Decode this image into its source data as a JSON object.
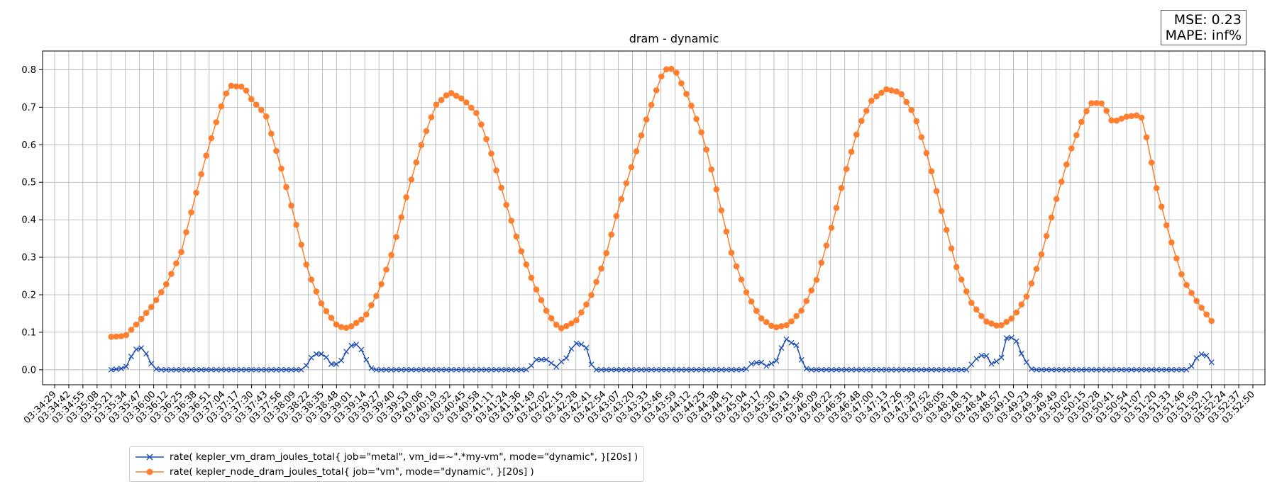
{
  "metrics": {
    "mse": "MSE: 0.23",
    "mape": "MAPE: inf%"
  },
  "colors": {
    "vm": "#1f4fb4",
    "node": "#ff7f2e"
  },
  "chart_data": {
    "type": "line",
    "title": "dram - dynamic",
    "xlabel": "",
    "ylabel": "",
    "ylim": [
      -0.04,
      0.85
    ],
    "grid": true,
    "legend_position": "bottom-left",
    "x_range": [
      "03:34:29",
      "03:52:50"
    ],
    "x_ticks": [
      "03:34:29",
      "03:34:42",
      "03:34:55",
      "03:35:08",
      "03:35:21",
      "03:35:34",
      "03:35:47",
      "03:36:00",
      "03:36:12",
      "03:36:25",
      "03:36:38",
      "03:36:51",
      "03:37:04",
      "03:37:17",
      "03:37:30",
      "03:37:43",
      "03:37:56",
      "03:38:09",
      "03:38:22",
      "03:38:35",
      "03:38:48",
      "03:39:01",
      "03:39:14",
      "03:39:27",
      "03:39:40",
      "03:39:53",
      "03:40:06",
      "03:40:19",
      "03:40:32",
      "03:40:45",
      "03:40:58",
      "03:41:11",
      "03:41:24",
      "03:41:36",
      "03:41:49",
      "03:42:02",
      "03:42:15",
      "03:42:28",
      "03:42:41",
      "03:42:54",
      "03:43:07",
      "03:43:20",
      "03:43:33",
      "03:43:46",
      "03:43:59",
      "03:44:12",
      "03:44:25",
      "03:44:38",
      "03:44:51",
      "03:45:04",
      "03:45:17",
      "03:45:30",
      "03:45:43",
      "03:45:56",
      "03:46:09",
      "03:46:22",
      "03:46:35",
      "03:46:48",
      "03:47:00",
      "03:47:13",
      "03:47:26",
      "03:47:39",
      "03:47:52",
      "03:48:05",
      "03:48:18",
      "03:48:31",
      "03:48:44",
      "03:48:57",
      "03:49:10",
      "03:49:23",
      "03:49:36",
      "03:49:49",
      "03:50:02",
      "03:50:15",
      "03:50:28",
      "03:50:41",
      "03:50:54",
      "03:51:07",
      "03:51:20",
      "03:51:33",
      "03:51:46",
      "03:51:59",
      "03:52:12",
      "03:52:24",
      "03:52:37",
      "03:52:50"
    ],
    "y_ticks": [
      "0.0",
      "0.1",
      "0.2",
      "0.3",
      "0.4",
      "0.5",
      "0.6",
      "0.7",
      "0.8"
    ],
    "series": [
      {
        "name": "rate( kepler_vm_dram_joules_total{ job=\"metal\", vm_id=~\".*my-vm\", mode=\"dynamic\", }[20s] )",
        "marker": "x",
        "x_start": "03:35:21",
        "x_end": "03:52:12",
        "points": [
          [
            "03:35:21",
            0.0
          ],
          [
            "03:35:30",
            0.003
          ],
          [
            "03:35:36",
            0.01
          ],
          [
            "03:35:40",
            0.04
          ],
          [
            "03:35:45",
            0.058
          ],
          [
            "03:35:51",
            0.058
          ],
          [
            "03:35:55",
            0.03
          ],
          [
            "03:36:00",
            0.005
          ],
          [
            "03:36:04",
            0.0
          ],
          [
            "03:38:18",
            0.0
          ],
          [
            "03:38:24",
            0.03
          ],
          [
            "03:38:28",
            0.042
          ],
          [
            "03:38:37",
            0.042
          ],
          [
            "03:38:42",
            0.015
          ],
          [
            "03:38:50",
            0.015
          ],
          [
            "03:38:55",
            0.035
          ],
          [
            "03:38:59",
            0.062
          ],
          [
            "03:39:06",
            0.068
          ],
          [
            "03:39:12",
            0.05
          ],
          [
            "03:39:17",
            0.015
          ],
          [
            "03:39:21",
            0.0
          ],
          [
            "03:41:45",
            0.0
          ],
          [
            "03:41:50",
            0.027
          ],
          [
            "03:42:04",
            0.027
          ],
          [
            "03:42:08",
            0.0
          ],
          [
            "03:42:13",
            0.02
          ],
          [
            "03:42:18",
            0.025
          ],
          [
            "03:42:23",
            0.05
          ],
          [
            "03:42:26",
            0.072
          ],
          [
            "03:42:37",
            0.065
          ],
          [
            "03:42:41",
            0.02
          ],
          [
            "03:42:45",
            0.0
          ],
          [
            "03:45:04",
            0.0
          ],
          [
            "03:45:10",
            0.018
          ],
          [
            "03:45:21",
            0.02
          ],
          [
            "03:45:24",
            0.005
          ],
          [
            "03:45:28",
            0.018
          ],
          [
            "03:45:33",
            0.025
          ],
          [
            "03:45:37",
            0.06
          ],
          [
            "03:45:41",
            0.082
          ],
          [
            "03:45:47",
            0.07
          ],
          [
            "03:45:51",
            0.065
          ],
          [
            "03:45:54",
            0.035
          ],
          [
            "03:45:58",
            0.005
          ],
          [
            "03:46:02",
            0.0
          ],
          [
            "03:48:28",
            0.0
          ],
          [
            "03:48:34",
            0.025
          ],
          [
            "03:48:40",
            0.038
          ],
          [
            "03:48:45",
            0.038
          ],
          [
            "03:48:50",
            0.015
          ],
          [
            "03:48:56",
            0.025
          ],
          [
            "03:49:00",
            0.035
          ],
          [
            "03:49:04",
            0.09
          ],
          [
            "03:49:12",
            0.082
          ],
          [
            "03:49:17",
            0.045
          ],
          [
            "03:49:23",
            0.015
          ],
          [
            "03:49:27",
            0.0
          ],
          [
            "03:51:51",
            0.0
          ],
          [
            "03:51:55",
            0.015
          ],
          [
            "03:51:59",
            0.035
          ],
          [
            "03:52:03",
            0.042
          ],
          [
            "03:52:08",
            0.037
          ],
          [
            "03:52:12",
            0.02
          ]
        ]
      },
      {
        "name": "rate( kepler_node_dram_joules_total{ job=\"vm\", mode=\"dynamic\", }[20s] )",
        "marker": "o",
        "x_start": "03:35:21",
        "x_end": "03:52:12",
        "points": [
          [
            "03:35:21",
            0.088
          ],
          [
            "03:35:34",
            0.09
          ],
          [
            "03:35:47",
            0.13
          ],
          [
            "03:36:00",
            0.175
          ],
          [
            "03:36:12",
            0.23
          ],
          [
            "03:36:25",
            0.31
          ],
          [
            "03:36:38",
            0.46
          ],
          [
            "03:36:51",
            0.6
          ],
          [
            "03:37:04",
            0.72
          ],
          [
            "03:37:10",
            0.758
          ],
          [
            "03:37:17",
            0.755
          ],
          [
            "03:37:23",
            0.755
          ],
          [
            "03:37:30",
            0.72
          ],
          [
            "03:37:43",
            0.68
          ],
          [
            "03:37:56",
            0.55
          ],
          [
            "03:38:09",
            0.41
          ],
          [
            "03:38:22",
            0.26
          ],
          [
            "03:38:35",
            0.17
          ],
          [
            "03:38:48",
            0.12
          ],
          [
            "03:38:55",
            0.11
          ],
          [
            "03:39:01",
            0.115
          ],
          [
            "03:39:14",
            0.14
          ],
          [
            "03:39:27",
            0.21
          ],
          [
            "03:39:40",
            0.32
          ],
          [
            "03:39:53",
            0.47
          ],
          [
            "03:40:06",
            0.6
          ],
          [
            "03:40:19",
            0.705
          ],
          [
            "03:40:32",
            0.74
          ],
          [
            "03:40:45",
            0.72
          ],
          [
            "03:40:58",
            0.68
          ],
          [
            "03:41:11",
            0.57
          ],
          [
            "03:41:24",
            0.44
          ],
          [
            "03:41:36",
            0.33
          ],
          [
            "03:41:49",
            0.23
          ],
          [
            "03:42:02",
            0.15
          ],
          [
            "03:42:10",
            0.12
          ],
          [
            "03:42:15",
            0.11
          ],
          [
            "03:42:28",
            0.13
          ],
          [
            "03:42:41",
            0.19
          ],
          [
            "03:42:54",
            0.29
          ],
          [
            "03:43:07",
            0.43
          ],
          [
            "03:43:20",
            0.55
          ],
          [
            "03:43:33",
            0.67
          ],
          [
            "03:43:46",
            0.78
          ],
          [
            "03:43:52",
            0.805
          ],
          [
            "03:43:59",
            0.8
          ],
          [
            "03:44:12",
            0.72
          ],
          [
            "03:44:25",
            0.62
          ],
          [
            "03:44:38",
            0.47
          ],
          [
            "03:44:51",
            0.31
          ],
          [
            "03:45:04",
            0.21
          ],
          [
            "03:45:17",
            0.14
          ],
          [
            "03:45:30",
            0.112
          ],
          [
            "03:45:43",
            0.12
          ],
          [
            "03:45:56",
            0.16
          ],
          [
            "03:46:09",
            0.24
          ],
          [
            "03:46:22",
            0.37
          ],
          [
            "03:46:35",
            0.52
          ],
          [
            "03:46:48",
            0.65
          ],
          [
            "03:47:00",
            0.72
          ],
          [
            "03:47:13",
            0.748
          ],
          [
            "03:47:26",
            0.74
          ],
          [
            "03:47:39",
            0.68
          ],
          [
            "03:47:52",
            0.56
          ],
          [
            "03:48:05",
            0.41
          ],
          [
            "03:48:18",
            0.27
          ],
          [
            "03:48:31",
            0.18
          ],
          [
            "03:48:44",
            0.13
          ],
          [
            "03:48:57",
            0.115
          ],
          [
            "03:49:10",
            0.14
          ],
          [
            "03:49:23",
            0.2
          ],
          [
            "03:49:36",
            0.31
          ],
          [
            "03:49:49",
            0.45
          ],
          [
            "03:50:02",
            0.58
          ],
          [
            "03:50:15",
            0.68
          ],
          [
            "03:50:22",
            0.712
          ],
          [
            "03:50:32",
            0.71
          ],
          [
            "03:50:41",
            0.66
          ],
          [
            "03:50:54",
            0.675
          ],
          [
            "03:51:07",
            0.68
          ],
          [
            "03:51:14",
            0.6
          ],
          [
            "03:51:20",
            0.5
          ],
          [
            "03:51:33",
            0.36
          ],
          [
            "03:51:46",
            0.24
          ],
          [
            "03:51:59",
            0.18
          ],
          [
            "03:52:12",
            0.13
          ]
        ]
      }
    ]
  }
}
